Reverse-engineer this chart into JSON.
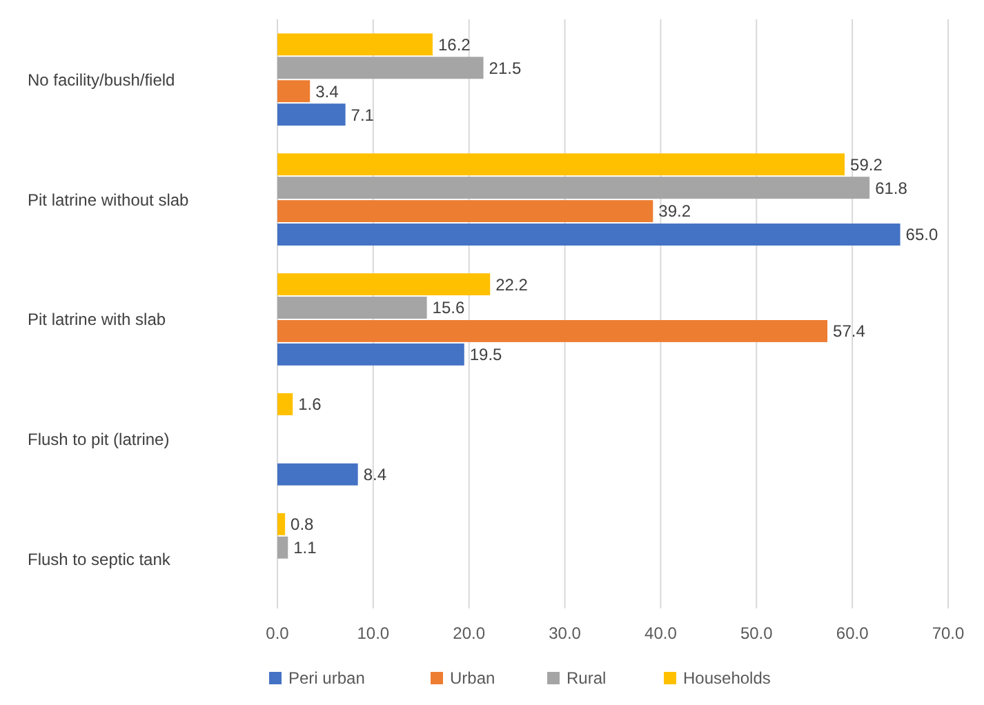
{
  "chart_data": {
    "type": "bar",
    "orientation": "horizontal",
    "categories": [
      "No facility/bush/field",
      "Pit latrine without slab",
      "Pit latrine with slab",
      "Flush to pit (latrine)",
      "Flush to septic tank"
    ],
    "series": [
      {
        "name": "Peri urban",
        "color": "#4472c4",
        "values": [
          7.1,
          65.0,
          19.5,
          8.4,
          null
        ],
        "value_labels": [
          "7.1",
          "65.0",
          "19.5",
          "8.4",
          null
        ]
      },
      {
        "name": "Urban",
        "color": "#ed7d31",
        "values": [
          3.4,
          39.2,
          57.4,
          null,
          null
        ],
        "value_labels": [
          "3.4",
          "39.2",
          "57.4",
          null,
          null
        ]
      },
      {
        "name": "Rural",
        "color": "#a5a5a5",
        "values": [
          21.5,
          61.8,
          15.6,
          null,
          1.1
        ],
        "value_labels": [
          "21.5",
          "61.8",
          "15.6",
          null,
          "1.1"
        ]
      },
      {
        "name": "Households",
        "color": "#ffc000",
        "values": [
          16.2,
          59.2,
          22.2,
          1.6,
          0.8
        ],
        "value_labels": [
          "16.2",
          "59.2",
          "22.2",
          "1.6",
          "0.8"
        ]
      }
    ],
    "xlim": [
      0,
      70
    ],
    "xticks": [
      {
        "value": 0,
        "label": "0.0"
      },
      {
        "value": 10,
        "label": "10.0"
      },
      {
        "value": 20,
        "label": "20.0"
      },
      {
        "value": 30,
        "label": "30.0"
      },
      {
        "value": 40,
        "label": "40.0"
      },
      {
        "value": 50,
        "label": "50.0"
      },
      {
        "value": 60,
        "label": "60.0"
      },
      {
        "value": 70,
        "label": "70.0"
      }
    ],
    "grid": "x",
    "legend": "bottom"
  }
}
